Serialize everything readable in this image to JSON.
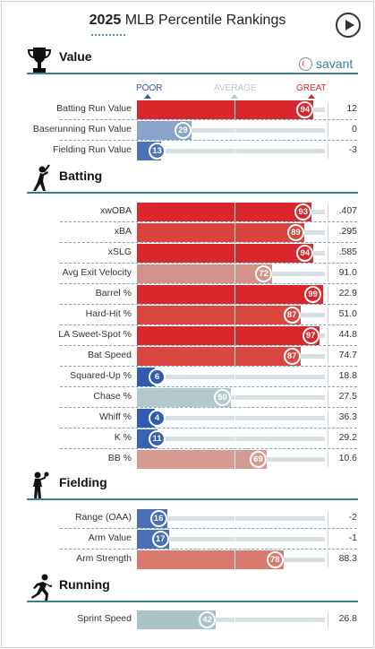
{
  "header": {
    "title_year": "2025",
    "title_rest": "MLB Percentile Rankings"
  },
  "brand": {
    "logo_text": "savant"
  },
  "scale": {
    "poor": "POOR",
    "average": "AVERAGE",
    "great": "GREAT"
  },
  "colors": {
    "poor": "#2f5bb0",
    "great": "#d9272c",
    "section_line": "#3e7f8f"
  },
  "sections": [
    {
      "title": "Value",
      "icon": "trophy-icon",
      "rows": [
        {
          "label": "Batting Run Value",
          "pct": 94,
          "value": "12",
          "color": "#d9272c"
        },
        {
          "label": "Baserunning Run Value",
          "pct": 29,
          "value": "0",
          "color": "#8aa3c8"
        },
        {
          "label": "Fielding Run Value",
          "pct": 13,
          "value": "-3",
          "color": "#4e72b8"
        }
      ]
    },
    {
      "title": "Batting",
      "icon": "batter-icon",
      "rows": [
        {
          "label": "xwOBA",
          "pct": 93,
          "value": ".407",
          "color": "#d9272c"
        },
        {
          "label": "xBA",
          "pct": 89,
          "value": ".295",
          "color": "#d9443e"
        },
        {
          "label": "xSLG",
          "pct": 94,
          "value": ".585",
          "color": "#d9272c"
        },
        {
          "label": "Avg Exit Velocity",
          "pct": 72,
          "value": "91.0",
          "color": "#d3928a"
        },
        {
          "label": "Barrel %",
          "pct": 99,
          "value": "22.9",
          "color": "#d9272c"
        },
        {
          "label": "Hard-Hit %",
          "pct": 87,
          "value": "51.0",
          "color": "#d9463f"
        },
        {
          "label": "LA Sweet-Spot %",
          "pct": 97,
          "value": "44.8",
          "color": "#d9272c"
        },
        {
          "label": "Bat Speed",
          "pct": 87,
          "value": "74.7",
          "color": "#d9463f"
        },
        {
          "label": "Squared-Up %",
          "pct": 6,
          "value": "18.8",
          "color": "#2f5bb0"
        },
        {
          "label": "Chase %",
          "pct": 50,
          "value": "27.5",
          "color": "#b3c8cd"
        },
        {
          "label": "Whiff %",
          "pct": 4,
          "value": "36.3",
          "color": "#2f5bb0"
        },
        {
          "label": "K %",
          "pct": 11,
          "value": "29.2",
          "color": "#3a62b2"
        },
        {
          "label": "BB %",
          "pct": 69,
          "value": "10.6",
          "color": "#d59b92"
        }
      ]
    },
    {
      "title": "Fielding",
      "icon": "fielder-icon",
      "rows": [
        {
          "label": "Range (OAA)",
          "pct": 16,
          "value": "-2",
          "color": "#4a6fb6"
        },
        {
          "label": "Arm Value",
          "pct": 17,
          "value": "-1",
          "color": "#4a6fb6"
        },
        {
          "label": "Arm Strength",
          "pct": 78,
          "value": "88.3",
          "color": "#d97a70"
        }
      ]
    },
    {
      "title": "Running",
      "icon": "runner-icon",
      "rows": [
        {
          "label": "Sprint Speed",
          "pct": 42,
          "value": "26.8",
          "color": "#a9c3c9"
        }
      ]
    }
  ]
}
